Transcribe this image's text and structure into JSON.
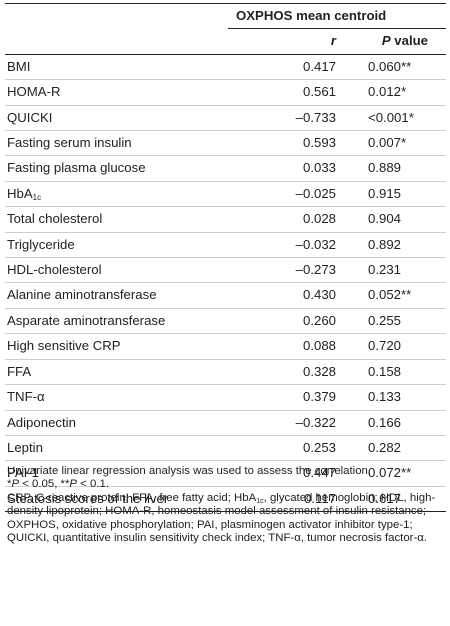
{
  "table": {
    "group_header": "OXPHOS mean centroid",
    "col_r": "r",
    "col_p_italic": "P",
    "col_p_rest": " value",
    "rows": [
      {
        "label": "BMI",
        "label_sub": "",
        "r": "0.417",
        "p": "0.060**"
      },
      {
        "label": "HOMA-R",
        "label_sub": "",
        "r": "0.561",
        "p": "0.012*"
      },
      {
        "label": "QUICKI",
        "label_sub": "",
        "r": "–0.733",
        "p": "<0.001*"
      },
      {
        "label": "Fasting serum insulin",
        "label_sub": "",
        "r": "0.593",
        "p": "0.007*"
      },
      {
        "label": "Fasting plasma glucose",
        "label_sub": "",
        "r": "0.033",
        "p": "0.889"
      },
      {
        "label": "HbA",
        "label_sub": "1c",
        "r": "–0.025",
        "p": "0.915"
      },
      {
        "label": "Total cholesterol",
        "label_sub": "",
        "r": "0.028",
        "p": "0.904"
      },
      {
        "label": "Triglyceride",
        "label_sub": "",
        "r": "–0.032",
        "p": "0.892"
      },
      {
        "label": "HDL-cholesterol",
        "label_sub": "",
        "r": "–0.273",
        "p": "0.231"
      },
      {
        "label": "Alanine aminotransferase",
        "label_sub": "",
        "r": "0.430",
        "p": "0.052**"
      },
      {
        "label": "Asparate aminotransferase",
        "label_sub": "",
        "r": "0.260",
        "p": "0.255"
      },
      {
        "label": "High sensitive CRP",
        "label_sub": "",
        "r": "0.088",
        "p": "0.720"
      },
      {
        "label": "FFA",
        "label_sub": "",
        "r": "0.328",
        "p": "0.158"
      },
      {
        "label": "TNF-α",
        "label_sub": "",
        "r": "0.379",
        "p": "0.133"
      },
      {
        "label": "Adiponectin",
        "label_sub": "",
        "r": "–0.322",
        "p": "0.166"
      },
      {
        "label": "Leptin",
        "label_sub": "",
        "r": "0.253",
        "p": "0.282"
      },
      {
        "label": "PAI-1",
        "label_sub": "",
        "r": "0.447",
        "p": "0.072**"
      },
      {
        "label": "Steatosis scores of the liver",
        "label_sub": "",
        "r": "0.117",
        "p": "0.617"
      }
    ]
  },
  "notes": {
    "line1": "Univariate linear regression analysis was used to assess the correlation.",
    "sig_p1": "P",
    "sig_1": " < 0.05, **",
    "sig_p2": "P",
    "sig_2": " < 0.1.",
    "sig_prefix": "*",
    "abbrev_a": "CRP, C-reactive protein; FFA, free fatty acid; HbA",
    "abbrev_sub": "1c",
    "abbrev_b": ", glycated hemoglobin; HDL, high-density lipoprotein; HOMA-R, homeostasis model assessment of insulin resistance; OXPHOS, oxidative phosphorylation; PAI, plasminogen activator inhibitor type-1; QUICKI, quantitative insulin sensitivity check index; TNF-α, tumor necrosis factor-α."
  }
}
